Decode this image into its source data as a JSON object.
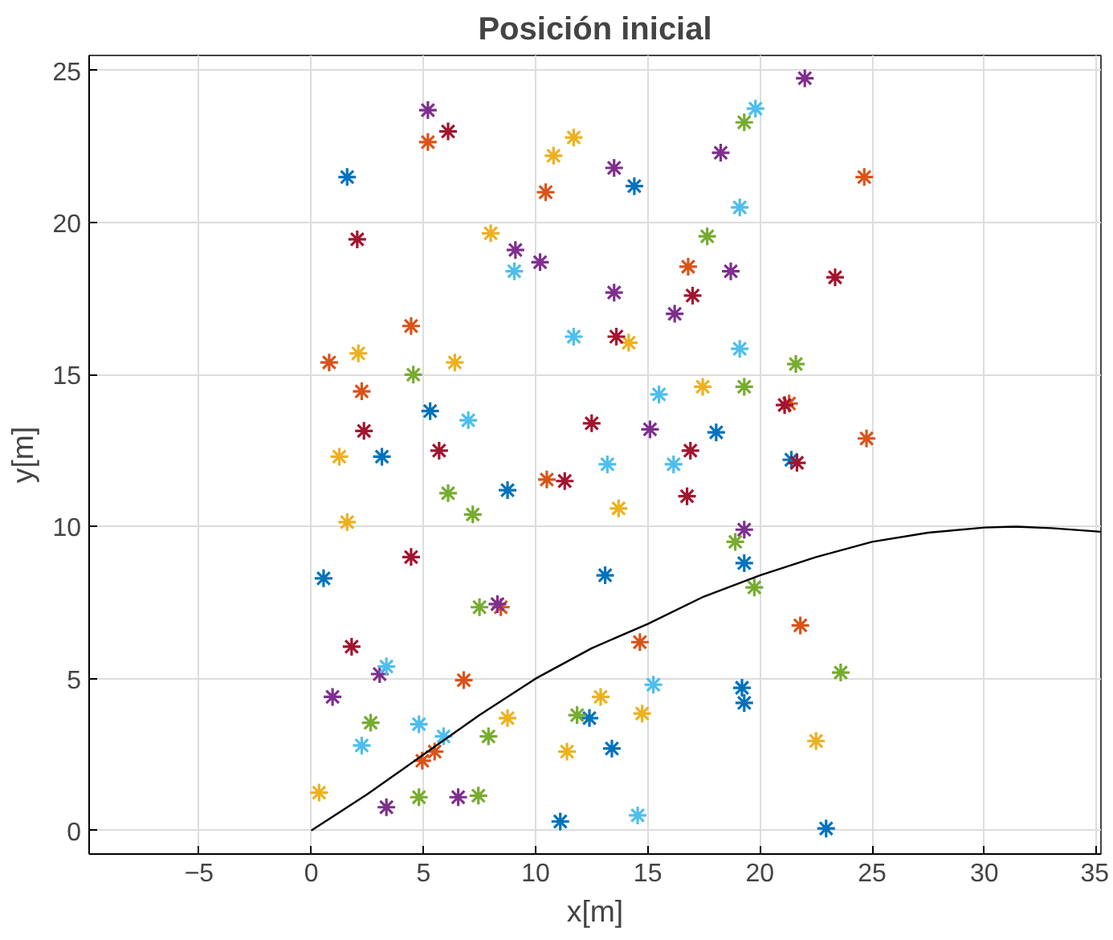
{
  "chart_data": {
    "type": "scatter",
    "title": "Posición inicial",
    "xlabel": "x[m]",
    "ylabel": "y[m]",
    "xlim": [
      -9.9,
      35.2
    ],
    "ylim": [
      -0.77,
      25.5
    ],
    "xticks": [
      -5,
      0,
      5,
      10,
      15,
      20,
      25,
      30,
      35
    ],
    "yticks": [
      0,
      5,
      10,
      15,
      20,
      25
    ],
    "grid": true,
    "marker": "cross",
    "series": [
      {
        "color": "#0072bd",
        "x": [
          1.6,
          5.3,
          3.15,
          8.75,
          0.55,
          14.4,
          18.05,
          21.4,
          13.1,
          19.3,
          19.2,
          19.3,
          12.4,
          13.4,
          11.1,
          22.95
        ],
        "values": [
          21.5,
          13.8,
          12.3,
          11.2,
          8.3,
          21.2,
          13.1,
          12.2,
          8.4,
          8.8,
          4.7,
          4.2,
          3.7,
          2.7,
          0.3,
          0.07
        ]
      },
      {
        "color": "#d95319",
        "x": [
          5.2,
          10.45,
          4.45,
          0.8,
          2.25,
          24.65,
          16.8,
          21.3,
          24.75,
          10.5,
          8.45,
          6.8,
          4.95,
          5.5,
          21.8,
          14.65
        ],
        "values": [
          22.65,
          21.0,
          16.6,
          15.4,
          14.45,
          21.5,
          18.55,
          14.05,
          12.9,
          11.55,
          7.35,
          4.95,
          2.3,
          2.6,
          6.75,
          6.2
        ]
      },
      {
        "color": "#edb120",
        "x": [
          10.8,
          11.7,
          8.0,
          2.1,
          6.4,
          1.25,
          1.6,
          14.15,
          17.45,
          13.7,
          8.75,
          0.35,
          12.9,
          14.75,
          11.4,
          22.5
        ],
        "values": [
          22.2,
          22.8,
          19.65,
          15.7,
          15.4,
          12.3,
          10.15,
          16.05,
          14.6,
          10.6,
          3.7,
          1.25,
          4.4,
          3.85,
          2.6,
          2.95
        ]
      },
      {
        "color": "#7e2f8e",
        "x": [
          5.2,
          9.1,
          10.2,
          22.0,
          13.5,
          18.25,
          18.7,
          13.5,
          16.2,
          15.1,
          8.3,
          3.05,
          0.95,
          3.35,
          6.55,
          19.3
        ],
        "values": [
          23.7,
          19.1,
          18.7,
          24.75,
          21.8,
          22.3,
          18.4,
          17.7,
          17.0,
          13.2,
          7.45,
          5.15,
          4.4,
          0.77,
          1.1,
          9.9
        ]
      },
      {
        "color": "#77ac30",
        "x": [
          4.55,
          19.3,
          17.65,
          21.6,
          19.3,
          6.1,
          7.2,
          7.5,
          2.65,
          7.9,
          4.8,
          7.45,
          18.9,
          19.75,
          23.6,
          11.85
        ],
        "values": [
          15.0,
          23.3,
          19.55,
          15.35,
          14.6,
          11.1,
          10.4,
          7.35,
          3.55,
          3.1,
          1.1,
          1.15,
          9.5,
          8.0,
          5.2,
          3.8
        ]
      },
      {
        "color": "#4dbeee",
        "x": [
          9.05,
          7.0,
          19.8,
          19.1,
          11.7,
          19.1,
          15.5,
          3.35,
          2.25,
          4.8,
          5.9,
          13.2,
          16.15,
          15.25,
          14.55
        ],
        "values": [
          18.4,
          13.5,
          23.75,
          20.5,
          16.25,
          15.85,
          14.35,
          5.4,
          2.8,
          3.5,
          3.1,
          12.05,
          12.05,
          4.8,
          0.5
        ]
      },
      {
        "color": "#a2142f",
        "x": [
          6.1,
          2.05,
          2.35,
          5.7,
          23.35,
          17.0,
          13.6,
          21.1,
          12.5,
          16.9,
          11.3,
          4.45,
          1.8,
          21.65,
          16.75
        ],
        "values": [
          23.0,
          19.45,
          13.15,
          12.5,
          18.2,
          17.6,
          16.25,
          14.0,
          13.4,
          12.5,
          11.5,
          9.0,
          6.05,
          12.1,
          11.0
        ]
      },
      {
        "type": "line",
        "color": "#000000",
        "marker": "none",
        "x": [
          0,
          2.5,
          5,
          7.5,
          10,
          12.5,
          15,
          17.5,
          20,
          22.5,
          25,
          27.5,
          30,
          31.4,
          33,
          35.2
        ],
        "values": [
          0,
          1.2,
          2.5,
          3.8,
          5.0,
          6.0,
          6.8,
          7.7,
          8.4,
          9.0,
          9.5,
          9.8,
          9.97,
          10.0,
          9.95,
          9.83
        ]
      }
    ]
  }
}
